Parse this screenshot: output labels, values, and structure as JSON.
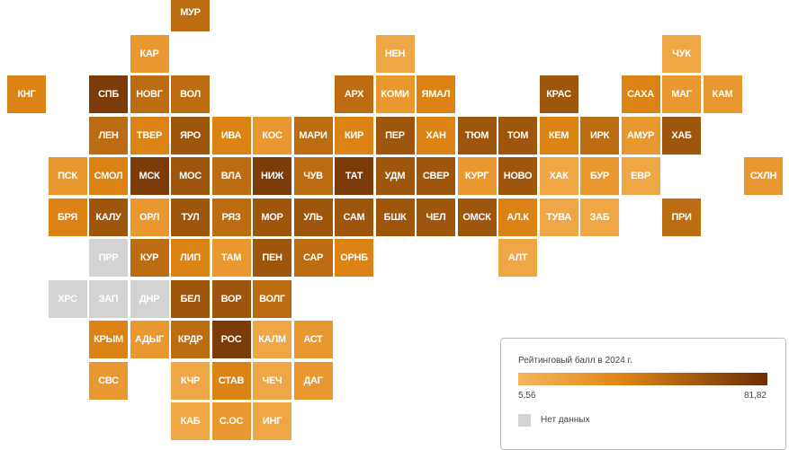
{
  "map": {
    "tiles": [
      {
        "label": "МУР",
        "value": 50
      },
      {
        "label": "КАР",
        "value": 25
      },
      {
        "label": "НЕН",
        "value": 15
      },
      {
        "label": "ЧУК",
        "value": 15
      },
      {
        "label": "КНГ",
        "value": 38
      },
      {
        "label": "СПБ",
        "value": 75
      },
      {
        "label": "НОВГ",
        "value": 50
      },
      {
        "label": "ВОЛ",
        "value": 50
      },
      {
        "label": "АРХ",
        "value": 50
      },
      {
        "label": "КОМИ",
        "value": 25
      },
      {
        "label": "ЯМАЛ",
        "value": 38
      },
      {
        "label": "КРАС",
        "value": 62
      },
      {
        "label": "САХА",
        "value": 38
      },
      {
        "label": "МАГ",
        "value": 25
      },
      {
        "label": "КАМ",
        "value": 25
      },
      {
        "label": "ЛЕН",
        "value": 50
      },
      {
        "label": "ТВЕР",
        "value": 38
      },
      {
        "label": "ЯРО",
        "value": 62
      },
      {
        "label": "ИВА",
        "value": 38
      },
      {
        "label": "КОС",
        "value": 25
      },
      {
        "label": "МАРИ",
        "value": 50
      },
      {
        "label": "КИР",
        "value": 38
      },
      {
        "label": "ПЕР",
        "value": 62
      },
      {
        "label": "ХАН",
        "value": 38
      },
      {
        "label": "ТЮМ",
        "value": 62
      },
      {
        "label": "ТОМ",
        "value": 62
      },
      {
        "label": "КЕМ",
        "value": 38
      },
      {
        "label": "ИРК",
        "value": 50
      },
      {
        "label": "АМУР",
        "value": 25
      },
      {
        "label": "ХАБ",
        "value": 62
      },
      {
        "label": "ПСК",
        "value": 25
      },
      {
        "label": "СМОЛ",
        "value": 38
      },
      {
        "label": "МСК",
        "value": 75
      },
      {
        "label": "МОС",
        "value": 62
      },
      {
        "label": "ВЛА",
        "value": 50
      },
      {
        "label": "НИЖ",
        "value": 75
      },
      {
        "label": "ЧУВ",
        "value": 50
      },
      {
        "label": "ТАТ",
        "value": 75
      },
      {
        "label": "УДМ",
        "value": 62
      },
      {
        "label": "СВЕР",
        "value": 62
      },
      {
        "label": "КУРГ",
        "value": 25
      },
      {
        "label": "НОВО",
        "value": 62
      },
      {
        "label": "ХАК",
        "value": 15
      },
      {
        "label": "БУР",
        "value": 25
      },
      {
        "label": "ЕВР",
        "value": 15
      },
      {
        "label": "СХЛН",
        "value": 25
      },
      {
        "label": "БРЯ",
        "value": 38
      },
      {
        "label": "КАЛУ",
        "value": 62
      },
      {
        "label": "ОРЛ",
        "value": 25
      },
      {
        "label": "ТУЛ",
        "value": 62
      },
      {
        "label": "РЯЗ",
        "value": 50
      },
      {
        "label": "МОР",
        "value": 62
      },
      {
        "label": "УЛЬ",
        "value": 62
      },
      {
        "label": "САМ",
        "value": 62
      },
      {
        "label": "БШК",
        "value": 62
      },
      {
        "label": "ЧЕЛ",
        "value": 62
      },
      {
        "label": "ОМСК",
        "value": 62
      },
      {
        "label": "АЛ.К",
        "value": 38
      },
      {
        "label": "ТУВА",
        "value": 15
      },
      {
        "label": "ЗАБ",
        "value": 15
      },
      {
        "label": "ПРИ",
        "value": 50
      },
      {
        "label": "ПРР",
        "value": null
      },
      {
        "label": "КУР",
        "value": 50
      },
      {
        "label": "ЛИП",
        "value": 38
      },
      {
        "label": "ТАМ",
        "value": 25
      },
      {
        "label": "ПЕН",
        "value": 62
      },
      {
        "label": "САР",
        "value": 50
      },
      {
        "label": "ОРНБ",
        "value": 38
      },
      {
        "label": "АЛТ",
        "value": 15
      },
      {
        "label": "ХРС",
        "value": null
      },
      {
        "label": "ЗАП",
        "value": null
      },
      {
        "label": "ДНР",
        "value": null
      },
      {
        "label": "БЕЛ",
        "value": 62
      },
      {
        "label": "ВОР",
        "value": 62
      },
      {
        "label": "ВОЛГ",
        "value": 50
      },
      {
        "label": "КРЫМ",
        "value": 38
      },
      {
        "label": "АДЫГ",
        "value": 25
      },
      {
        "label": "КРДР",
        "value": 50
      },
      {
        "label": "РОС",
        "value": 75
      },
      {
        "label": "КАЛМ",
        "value": 15
      },
      {
        "label": "АСТ",
        "value": 25
      },
      {
        "label": "СВС",
        "value": 25
      },
      {
        "label": "КЧР",
        "value": 15
      },
      {
        "label": "СТАВ",
        "value": 38
      },
      {
        "label": "ЧЕЧ",
        "value": 15
      },
      {
        "label": "ДАГ",
        "value": 25
      },
      {
        "label": "КАБ",
        "value": 15
      },
      {
        "label": "С.ОС",
        "value": 25
      },
      {
        "label": "ИНГ",
        "value": 15
      }
    ]
  },
  "legend": {
    "title": "Рейтинговый балл в 2024 г.",
    "min": "5,56",
    "max": "81,82",
    "min_value": 5.56,
    "max_value": 81.82,
    "no_data_label": "Нет данных",
    "colors": {
      "low": "#f6b65c",
      "mid": "#e08716",
      "high": "#6b2e05",
      "no_data": "#d3d3d3"
    }
  }
}
